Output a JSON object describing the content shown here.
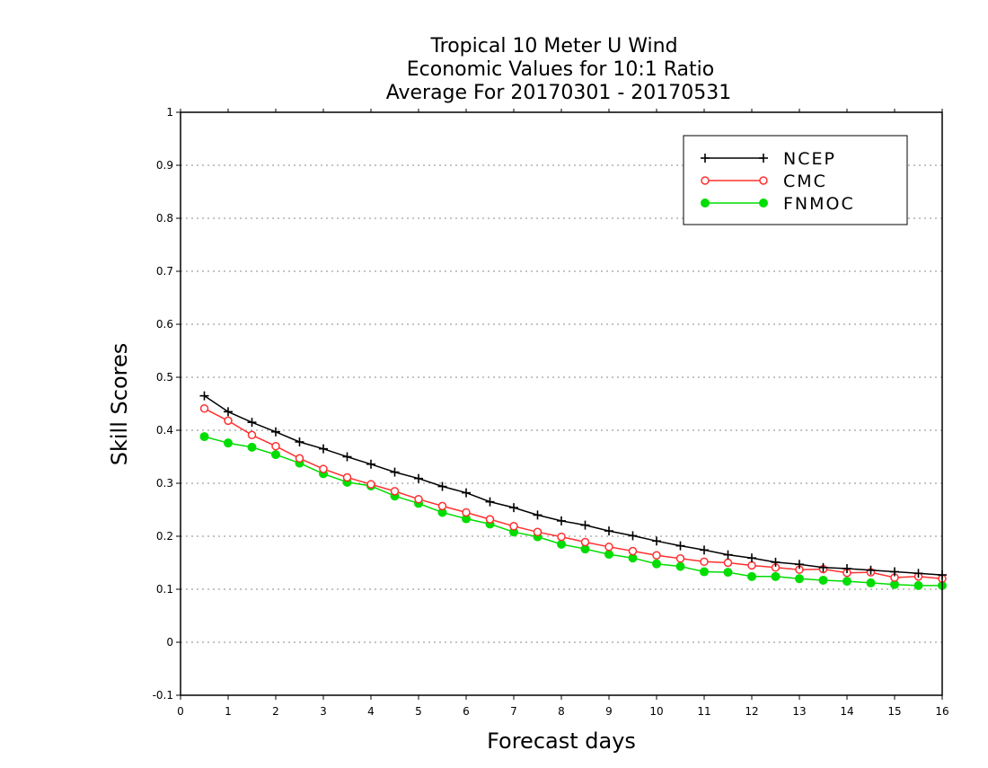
{
  "chart_data": {
    "type": "line",
    "title_lines": [
      "Tropical 10 Meter U Wind",
      "Economic Values for 10:1 Ratio",
      "Average For 20170301 - 20170531"
    ],
    "xlabel": "Forecast days",
    "ylabel": "Skill Scores",
    "xlim": [
      0,
      16
    ],
    "ylim": [
      -0.1,
      1
    ],
    "x_ticks": [
      "0",
      "1",
      "2",
      "3",
      "4",
      "5",
      "6",
      "7",
      "8",
      "9",
      "10",
      "11",
      "12",
      "13",
      "14",
      "15",
      "16"
    ],
    "y_ticks": [
      "-0.1",
      "0",
      "0.1",
      "0.2",
      "0.3",
      "0.4",
      "0.5",
      "0.6",
      "0.7",
      "0.8",
      "0.9",
      "1"
    ],
    "grid": "dotted horizontal",
    "legend_position": "top-right",
    "x": [
      0.5,
      1,
      1.5,
      2,
      2.5,
      3,
      3.5,
      4,
      4.5,
      5,
      5.5,
      6,
      6.5,
      7,
      7.5,
      8,
      8.5,
      9,
      9.5,
      10,
      10.5,
      11,
      11.5,
      12,
      12.5,
      13,
      13.5,
      14,
      14.5,
      15,
      15.5,
      16
    ],
    "series": [
      {
        "name": "NCEP",
        "color": "#000000",
        "marker": "plus",
        "values": [
          0.465,
          0.435,
          0.415,
          0.397,
          0.378,
          0.365,
          0.35,
          0.336,
          0.321,
          0.309,
          0.294,
          0.282,
          0.265,
          0.254,
          0.24,
          0.229,
          0.221,
          0.21,
          0.201,
          0.191,
          0.182,
          0.174,
          0.165,
          0.159,
          0.151,
          0.147,
          0.141,
          0.139,
          0.136,
          0.133,
          0.13,
          0.127
        ]
      },
      {
        "name": "CMC",
        "color": "#ff3030",
        "marker": "open-circle",
        "values": [
          0.441,
          0.418,
          0.391,
          0.37,
          0.347,
          0.327,
          0.311,
          0.298,
          0.285,
          0.27,
          0.257,
          0.245,
          0.232,
          0.219,
          0.208,
          0.199,
          0.189,
          0.18,
          0.172,
          0.164,
          0.158,
          0.152,
          0.15,
          0.145,
          0.141,
          0.137,
          0.138,
          0.131,
          0.132,
          0.122,
          0.124,
          0.12
        ]
      },
      {
        "name": "FNMOC",
        "color": "#00dd00",
        "marker": "filled-circle",
        "values": [
          0.388,
          0.376,
          0.368,
          0.354,
          0.338,
          0.318,
          0.302,
          0.295,
          0.276,
          0.262,
          0.245,
          0.233,
          0.223,
          0.208,
          0.199,
          0.185,
          0.176,
          0.166,
          0.159,
          0.148,
          0.143,
          0.133,
          0.132,
          0.124,
          0.124,
          0.12,
          0.117,
          0.115,
          0.112,
          0.109,
          0.107,
          0.107
        ]
      }
    ]
  }
}
